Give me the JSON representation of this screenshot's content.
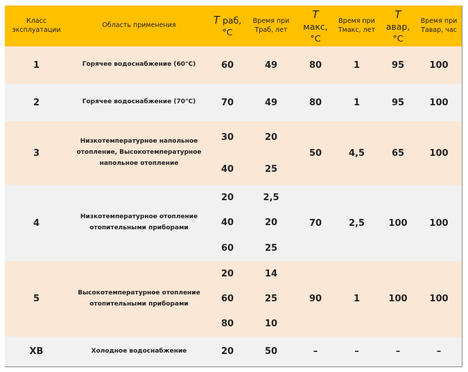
{
  "header": [
    "Класс эксплуатации",
    "Область применения",
    {
      "symbol": "T",
      "text": "раб, °C"
    },
    "Время при Траб, лет",
    {
      "symbol": "T",
      "text": "макс, °C"
    },
    "Время при Тмакс, лет",
    {
      "symbol": "T",
      "text": "авар, °C"
    },
    "Время при Тавар, час"
  ],
  "rows": [
    [
      "1",
      "Горячее водоснабжение (60°С)",
      [
        "60"
      ],
      [
        "49"
      ],
      "80",
      "1",
      "95",
      "100"
    ],
    [
      "2",
      "Горячее водоснабжение (70°С)",
      [
        "70"
      ],
      [
        "49"
      ],
      "80",
      "1",
      "95",
      "100"
    ],
    [
      "3",
      "Низкотемпературное напольное отопление, Высокотемпературное напольное отопление",
      [
        "30",
        "40"
      ],
      [
        "20",
        "25"
      ],
      "50",
      "4,5",
      "65",
      "100"
    ],
    [
      "4",
      "Низкотемпературное отопление отопительными приборами",
      [
        "20",
        "40",
        "60"
      ],
      [
        "2,5",
        "20",
        "25"
      ],
      "70",
      "2,5",
      "100",
      "100"
    ],
    [
      "5",
      "Высокотемпературное отопление отопительными приборами",
      [
        "20",
        "60",
        "80"
      ],
      [
        "14",
        "25",
        "10"
      ],
      "90",
      "1",
      "100",
      "100"
    ],
    [
      "ХВ",
      "Холодное водоснабжение",
      [
        "20"
      ],
      [
        "50"
      ],
      "–",
      "–",
      "–",
      "–"
    ]
  ]
}
